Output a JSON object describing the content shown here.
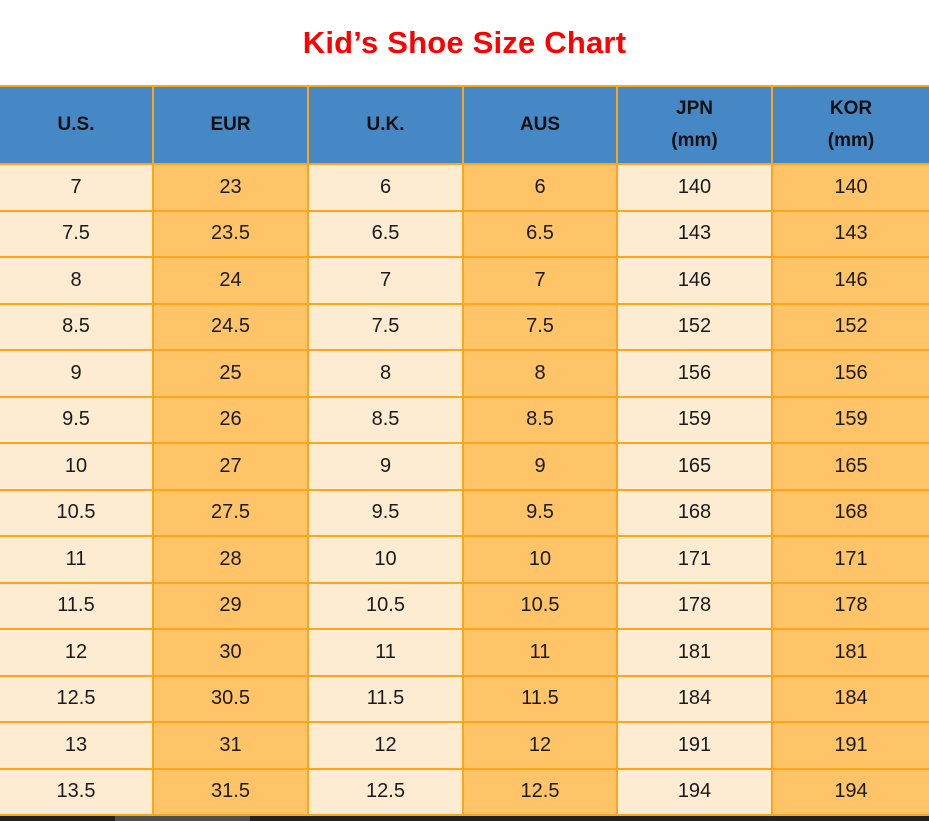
{
  "header": {
    "title": "Kid’s Shoe Size Chart"
  },
  "colors": {
    "title_red": "#ff0000",
    "header_blue": "#4688c6",
    "cell_cream": "#fdecd2",
    "cell_orange": "#ffc368",
    "border_orange": "#ffa41d",
    "text_black": "#1b1b1b",
    "scrollbar_track": "#212121",
    "scrollbar_thumb": "#4f4f4f"
  },
  "table": {
    "headers": [
      {
        "key": "us",
        "line1": "U.S.",
        "line2": ""
      },
      {
        "key": "eur",
        "line1": "EUR",
        "line2": ""
      },
      {
        "key": "uk",
        "line1": "U.K.",
        "line2": ""
      },
      {
        "key": "aus",
        "line1": "AUS",
        "line2": ""
      },
      {
        "key": "jpn",
        "line1": "JPN",
        "line2": "(mm)"
      },
      {
        "key": "kor",
        "line1": "KOR",
        "line2": "(mm)"
      }
    ]
  },
  "chart_data": {
    "type": "table",
    "title": "Kid’s Shoe Size Chart",
    "columns": [
      "U.S.",
      "EUR",
      "U.K.",
      "AUS",
      "JPN (mm)",
      "KOR (mm)"
    ],
    "rows": [
      [
        "7",
        "23",
        "6",
        "6",
        "140",
        "140"
      ],
      [
        "7.5",
        "23.5",
        "6.5",
        "6.5",
        "143",
        "143"
      ],
      [
        "8",
        "24",
        "7",
        "7",
        "146",
        "146"
      ],
      [
        "8.5",
        "24.5",
        "7.5",
        "7.5",
        "152",
        "152"
      ],
      [
        "9",
        "25",
        "8",
        "8",
        "156",
        "156"
      ],
      [
        "9.5",
        "26",
        "8.5",
        "8.5",
        "159",
        "159"
      ],
      [
        "10",
        "27",
        "9",
        "9",
        "165",
        "165"
      ],
      [
        "10.5",
        "27.5",
        "9.5",
        "9.5",
        "168",
        "168"
      ],
      [
        "11",
        "28",
        "10",
        "10",
        "171",
        "171"
      ],
      [
        "11.5",
        "29",
        "10.5",
        "10.5",
        "178",
        "178"
      ],
      [
        "12",
        "30",
        "11",
        "11",
        "181",
        "181"
      ],
      [
        "12.5",
        "30.5",
        "11.5",
        "11.5",
        "184",
        "184"
      ],
      [
        "13",
        "31",
        "12",
        "12",
        "191",
        "191"
      ],
      [
        "13.5",
        "31.5",
        "12.5",
        "12.5",
        "194",
        "194"
      ]
    ]
  }
}
